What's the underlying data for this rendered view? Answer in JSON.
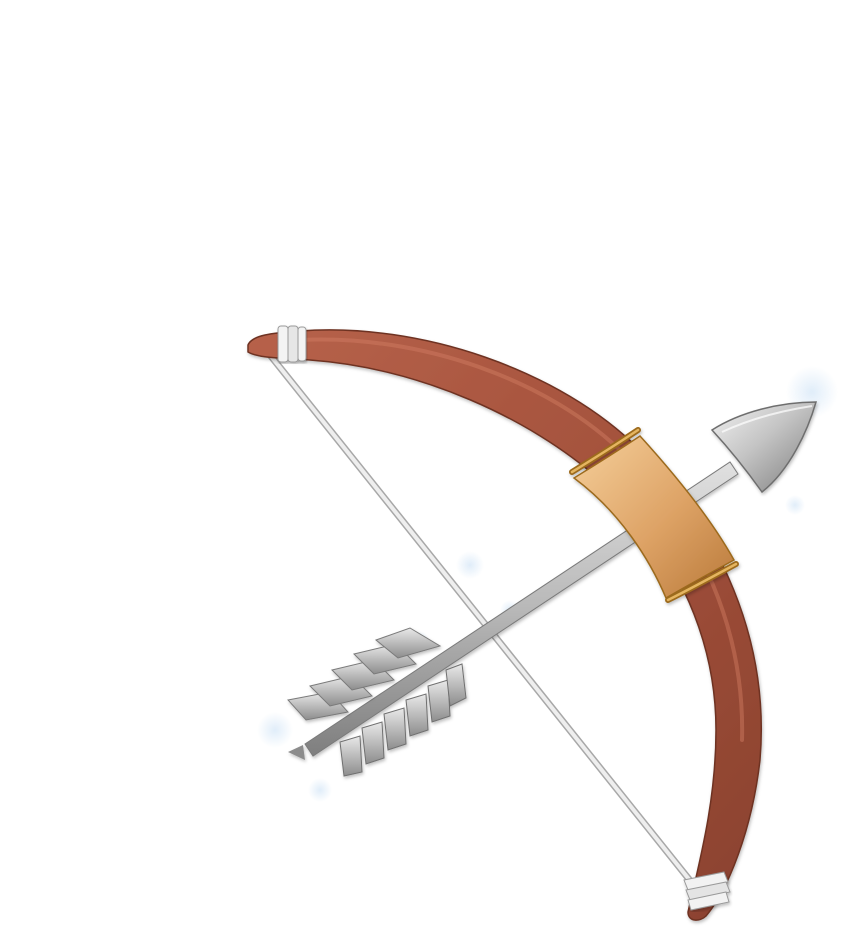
{
  "illustration": {
    "subject": "bow-and-arrow",
    "colors": {
      "background": "#ffffff",
      "bow_wood_light": "#c0684c",
      "bow_wood_mid": "#a3513c",
      "bow_wood_dark": "#7b3826",
      "grip_light": "#f2c58e",
      "grip_mid": "#d99c5c",
      "grip_dark": "#b97a3c",
      "grip_band": "#9c6a1e",
      "string": "#d9d9d9",
      "binding": "#ececec",
      "shaft_light": "#d2d2d2",
      "shaft_dark": "#8e8e8e",
      "arrowhead_light": "#e6e6e6",
      "arrowhead_dark": "#8a8a8a",
      "fletching_light": "#dedede",
      "fletching_dark": "#7f7f7f",
      "sparkle": "#dcebf7"
    }
  }
}
